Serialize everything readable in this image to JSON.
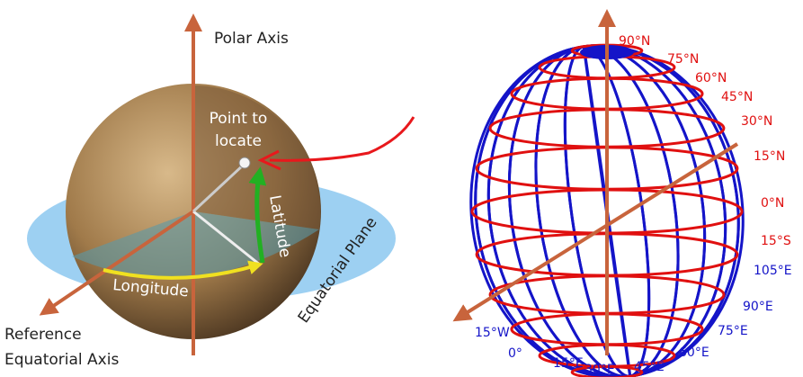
{
  "left": {
    "polar_axis": "Polar Axis",
    "point_label": [
      "Point to",
      "locate"
    ],
    "latitude": "Latitude",
    "equatorial_plane": "Equatorial Plane",
    "longitude": "Longitude",
    "reference_axis": [
      "Reference",
      "Equatorial Axis"
    ]
  },
  "right": {
    "latitudes": [
      "90°N",
      "75°N",
      "60°N",
      "45°N",
      "30°N",
      "15°N",
      "0°N",
      "15°S"
    ],
    "longitudes": [
      "105°E",
      "90°E",
      "75°E",
      "60°E",
      "45°E",
      "30°E",
      "15°E",
      "0°",
      "15°W"
    ]
  }
}
